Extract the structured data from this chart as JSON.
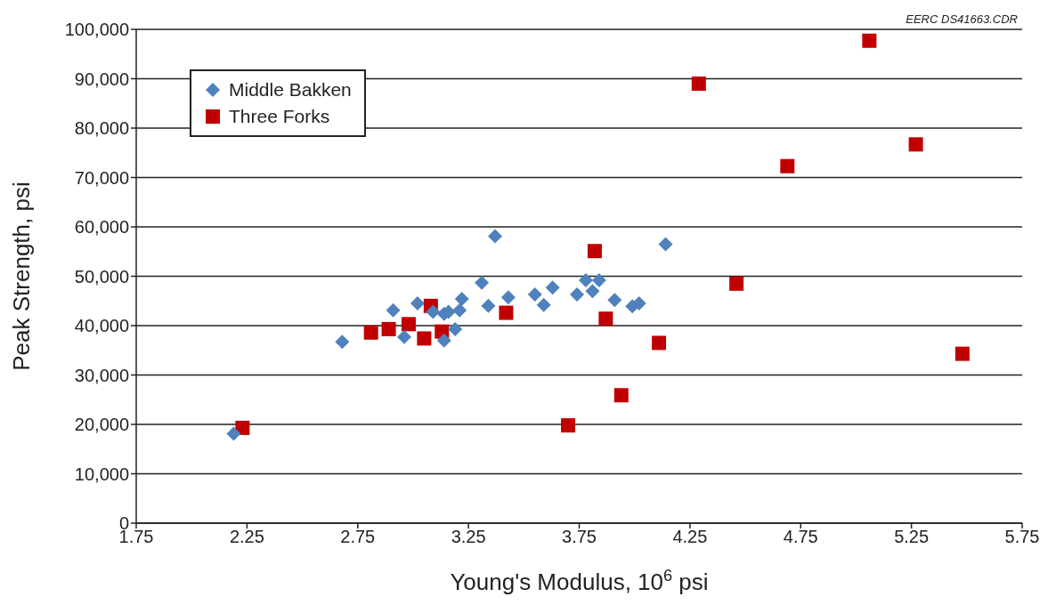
{
  "chart_data": {
    "type": "scatter",
    "xlabel": "Young's Modulus, 10$^{6}$ psi",
    "ylabel": "Peak Strength, psi",
    "annotations": [
      "EERC DS41663.CDR"
    ],
    "xlim": [
      1.75,
      5.75
    ],
    "xticks": [
      1.75,
      2.25,
      2.75,
      3.25,
      3.75,
      4.25,
      4.75,
      5.25,
      5.75
    ],
    "ylim": [
      0,
      100000
    ],
    "yticks": [
      {
        "value": 0,
        "label": "0"
      },
      {
        "value": 10000,
        "label": "10,000"
      },
      {
        "value": 20000,
        "label": "20,000"
      },
      {
        "value": 30000,
        "label": "30,000"
      },
      {
        "value": 40000,
        "label": "40,000"
      },
      {
        "value": 50000,
        "label": "50,000"
      },
      {
        "value": 60000,
        "label": "60,000"
      },
      {
        "value": 70000,
        "label": "70,000"
      },
      {
        "value": 80000,
        "label": "80,000"
      },
      {
        "value": 90000,
        "label": "90,000"
      },
      {
        "value": 100000,
        "label": "100,000"
      }
    ],
    "grid": "y",
    "legend": "top left",
    "series": [
      {
        "name": "Middle Bakken",
        "color": "#4f81bd",
        "marker": "diamond",
        "x": [
          2.19,
          2.68,
          2.91,
          2.96,
          3.02,
          3.09,
          3.14,
          3.14,
          3.16,
          3.19,
          3.21,
          3.22,
          3.31,
          3.34,
          3.37,
          3.43,
          3.55,
          3.59,
          3.63,
          3.74,
          3.78,
          3.81,
          3.84,
          3.91,
          3.99,
          4.02,
          4.14
        ],
        "values": [
          18100,
          36700,
          43100,
          37700,
          44500,
          42800,
          37000,
          42400,
          42800,
          39300,
          43100,
          45400,
          48700,
          44000,
          58100,
          45700,
          46300,
          44200,
          47700,
          46300,
          49200,
          47000,
          49200,
          45200,
          43900,
          44500,
          56500
        ]
      },
      {
        "name": "Three Forks",
        "color": "#c00000",
        "marker": "square",
        "x": [
          2.23,
          2.81,
          2.89,
          2.98,
          3.05,
          3.08,
          3.13,
          3.42,
          3.82,
          3.87,
          3.7,
          3.94,
          4.11,
          4.29,
          4.46,
          4.69,
          5.06,
          5.27,
          5.48
        ],
        "values": [
          19300,
          38600,
          39300,
          40300,
          37400,
          44000,
          38800,
          42600,
          55100,
          41400,
          19800,
          25900,
          36500,
          89000,
          48500,
          72300,
          97700,
          76700,
          34300
        ]
      }
    ]
  }
}
